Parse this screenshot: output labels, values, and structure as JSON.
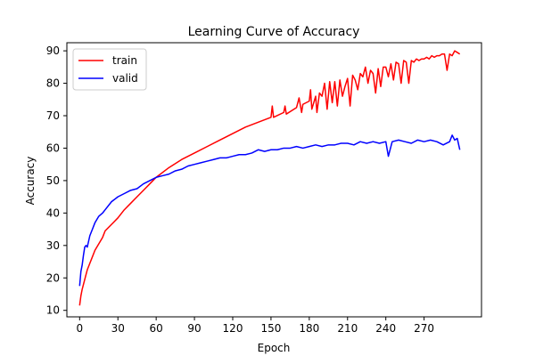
{
  "chart_data": {
    "type": "line",
    "title": "Learning Curve of Accuracy",
    "xlabel": "Epoch",
    "ylabel": "Accuracy",
    "xlim": [
      -10,
      315
    ],
    "ylim": [
      8,
      92.5
    ],
    "xticks": [
      0,
      30,
      60,
      90,
      120,
      150,
      180,
      210,
      240,
      270
    ],
    "yticks": [
      10,
      20,
      30,
      40,
      50,
      60,
      70,
      80,
      90
    ],
    "grid": false,
    "legend_position": "top-left",
    "series": [
      {
        "name": "train",
        "color": "#ff0000",
        "x": [
          0,
          1,
          2,
          3,
          4,
          5,
          6,
          8,
          10,
          12,
          15,
          18,
          20,
          25,
          30,
          35,
          40,
          45,
          50,
          55,
          60,
          70,
          80,
          90,
          100,
          110,
          120,
          130,
          140,
          150,
          151,
          152,
          160,
          161,
          162,
          170,
          172,
          174,
          175,
          180,
          181,
          182,
          185,
          186,
          188,
          190,
          192,
          194,
          196,
          198,
          200,
          202,
          204,
          206,
          208,
          210,
          212,
          214,
          216,
          218,
          220,
          222,
          224,
          226,
          228,
          230,
          232,
          234,
          236,
          238,
          240,
          242,
          244,
          246,
          248,
          250,
          252,
          254,
          256,
          258,
          260,
          262,
          264,
          266,
          268,
          270,
          272,
          274,
          276,
          278,
          280,
          282,
          284,
          286,
          288,
          290,
          292,
          294,
          296,
          298
        ],
        "values": [
          11.5,
          14.5,
          16.5,
          18,
          19.5,
          21,
          22.5,
          24.5,
          26.5,
          28.5,
          30.5,
          32.5,
          34.5,
          36.5,
          38.5,
          41,
          43,
          45,
          47,
          49,
          51,
          54,
          56.5,
          58.5,
          60.5,
          62.5,
          64.5,
          66.5,
          68,
          69.5,
          73,
          69.5,
          71,
          73,
          70.5,
          72.5,
          75.5,
          71,
          73.5,
          74.5,
          78,
          72,
          76,
          71,
          77,
          76,
          80,
          72,
          80.5,
          74,
          80.5,
          73,
          81,
          76,
          79,
          81.5,
          73,
          82.5,
          81,
          78,
          83,
          82,
          85,
          80,
          84,
          83,
          77,
          84.5,
          79,
          85,
          85,
          82,
          86,
          81,
          86.5,
          86,
          80,
          87,
          86.5,
          80,
          87,
          86.5,
          87.5,
          87,
          87.5,
          87.5,
          88,
          87.5,
          88.5,
          88,
          88.5,
          88.5,
          89,
          89,
          84,
          89,
          88.5,
          90,
          89.5,
          89
        ]
      },
      {
        "name": "valid",
        "color": "#0000ff",
        "x": [
          0,
          1,
          2,
          3,
          4,
          5,
          6,
          8,
          10,
          12,
          15,
          18,
          20,
          25,
          30,
          35,
          40,
          45,
          50,
          55,
          60,
          65,
          70,
          75,
          80,
          85,
          90,
          95,
          100,
          105,
          110,
          115,
          120,
          125,
          130,
          135,
          140,
          145,
          150,
          155,
          160,
          165,
          170,
          175,
          180,
          185,
          190,
          195,
          200,
          205,
          210,
          215,
          220,
          225,
          230,
          235,
          240,
          242,
          245,
          250,
          255,
          260,
          265,
          270,
          275,
          280,
          285,
          290,
          292,
          294,
          296,
          298
        ],
        "values": [
          17.5,
          22,
          24,
          27,
          29.5,
          30,
          29.5,
          33,
          35,
          37,
          39,
          40,
          41,
          43.5,
          45,
          46,
          47,
          47.5,
          49,
          50,
          51,
          51.5,
          52,
          53,
          53.5,
          54.5,
          55,
          55.5,
          56,
          56.5,
          57,
          57,
          57.5,
          58,
          58,
          58.5,
          59.5,
          59,
          59.5,
          59.5,
          60,
          60,
          60.5,
          60,
          60.5,
          61,
          60.5,
          61,
          61,
          61.5,
          61.5,
          61,
          62,
          61.5,
          62,
          61.5,
          62,
          57.5,
          62,
          62.5,
          62,
          61.5,
          62.5,
          62,
          62.5,
          62,
          61,
          62,
          64,
          62.5,
          63,
          59.5
        ]
      }
    ]
  }
}
